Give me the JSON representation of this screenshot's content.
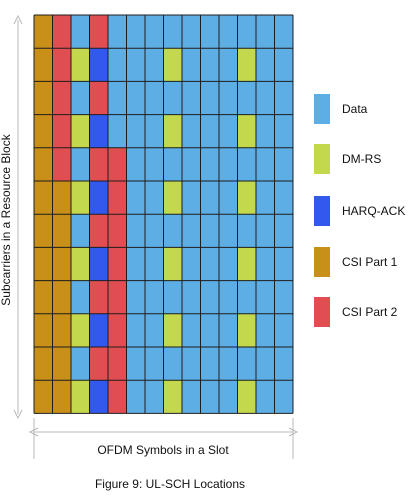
{
  "diagram": {
    "yAxisLabel": "Subcarriers in a Resource Block",
    "xAxisLabel": "OFDM Symbols in a Slot",
    "caption": "Figure 9: UL-SCH Locations",
    "colors": {
      "Data": "#5eaee6",
      "DM-RS": "#c4d84d",
      "HARQ-ACK": "#3259ee",
      "CSI Part 1": "#c89018",
      "CSI Part 2": "#e04e52",
      "gridline": "#1d1d1d",
      "axisline": "#b8b8b8"
    },
    "legend": [
      {
        "label": "Data",
        "color": "#5eaee6"
      },
      {
        "label": "DM-RS",
        "color": "#c4d84d"
      },
      {
        "label": "HARQ-ACK",
        "color": "#3259ee"
      },
      {
        "label": "CSI Part 1",
        "color": "#c89018"
      },
      {
        "label": "CSI Part 2",
        "color": "#e04e52"
      }
    ],
    "grid": [
      [
        "CSI Part 1",
        "CSI Part 2",
        "Data",
        "CSI Part 2",
        "Data",
        "Data",
        "Data",
        "Data",
        "Data",
        "Data",
        "Data",
        "Data",
        "Data",
        "Data"
      ],
      [
        "CSI Part 1",
        "CSI Part 2",
        "DM-RS",
        "HARQ-ACK",
        "Data",
        "Data",
        "Data",
        "DM-RS",
        "Data",
        "Data",
        "Data",
        "DM-RS",
        "Data",
        "Data"
      ],
      [
        "CSI Part 1",
        "CSI Part 2",
        "Data",
        "CSI Part 2",
        "Data",
        "Data",
        "Data",
        "Data",
        "Data",
        "Data",
        "Data",
        "Data",
        "Data",
        "Data"
      ],
      [
        "CSI Part 1",
        "CSI Part 2",
        "DM-RS",
        "HARQ-ACK",
        "Data",
        "Data",
        "Data",
        "DM-RS",
        "Data",
        "Data",
        "Data",
        "DM-RS",
        "Data",
        "Data"
      ],
      [
        "CSI Part 1",
        "CSI Part 2",
        "Data",
        "CSI Part 2",
        "CSI Part 2",
        "Data",
        "Data",
        "Data",
        "Data",
        "Data",
        "Data",
        "Data",
        "Data",
        "Data"
      ],
      [
        "CSI Part 1",
        "CSI Part 1",
        "DM-RS",
        "HARQ-ACK",
        "CSI Part 2",
        "Data",
        "Data",
        "DM-RS",
        "Data",
        "Data",
        "Data",
        "DM-RS",
        "Data",
        "Data"
      ],
      [
        "CSI Part 1",
        "CSI Part 1",
        "Data",
        "CSI Part 2",
        "CSI Part 2",
        "Data",
        "Data",
        "Data",
        "Data",
        "Data",
        "Data",
        "Data",
        "Data",
        "Data"
      ],
      [
        "CSI Part 1",
        "CSI Part 1",
        "DM-RS",
        "HARQ-ACK",
        "CSI Part 2",
        "Data",
        "Data",
        "DM-RS",
        "Data",
        "Data",
        "Data",
        "DM-RS",
        "Data",
        "Data"
      ],
      [
        "CSI Part 1",
        "CSI Part 1",
        "Data",
        "CSI Part 2",
        "CSI Part 2",
        "Data",
        "Data",
        "Data",
        "Data",
        "Data",
        "Data",
        "Data",
        "Data",
        "Data"
      ],
      [
        "CSI Part 1",
        "CSI Part 1",
        "DM-RS",
        "HARQ-ACK",
        "CSI Part 2",
        "Data",
        "Data",
        "DM-RS",
        "Data",
        "Data",
        "Data",
        "DM-RS",
        "Data",
        "Data"
      ],
      [
        "CSI Part 1",
        "CSI Part 1",
        "Data",
        "CSI Part 2",
        "CSI Part 2",
        "Data",
        "Data",
        "Data",
        "Data",
        "Data",
        "Data",
        "Data",
        "Data",
        "Data"
      ],
      [
        "CSI Part 1",
        "CSI Part 1",
        "DM-RS",
        "HARQ-ACK",
        "CSI Part 2",
        "Data",
        "Data",
        "DM-RS",
        "Data",
        "Data",
        "Data",
        "DM-RS",
        "Data",
        "Data"
      ]
    ]
  }
}
